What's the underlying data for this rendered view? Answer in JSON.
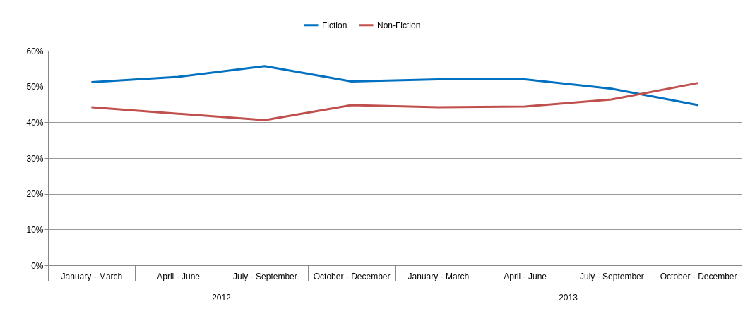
{
  "chart_data": {
    "type": "line",
    "categories": [
      "January - March",
      "April - June",
      "July - September",
      "October - December",
      "January - March",
      "April - June",
      "July - September",
      "October - December"
    ],
    "series": [
      {
        "name": "Fiction",
        "color": "#0070c0",
        "values": [
          51.2,
          52.7,
          55.7,
          51.4,
          52,
          52,
          49.4,
          44.8
        ]
      },
      {
        "name": "Non-Fiction",
        "color": "#c0504d",
        "values": [
          44.2,
          42.4,
          40.6,
          44.8,
          44.2,
          44.4,
          46.4,
          51
        ]
      }
    ],
    "annotations": [
      "2012",
      "2013"
    ],
    "ylim": [
      0,
      60
    ],
    "yticks": [
      {
        "value": 0,
        "label": "0%"
      },
      {
        "value": 10,
        "label": "10%"
      },
      {
        "value": 20,
        "label": "20%"
      },
      {
        "value": 30,
        "label": "30%"
      },
      {
        "value": 40,
        "label": "40%"
      },
      {
        "value": 50,
        "label": "50%"
      },
      {
        "value": 60,
        "label": "60%"
      }
    ],
    "grid": "y",
    "legend": "top",
    "marker": "none",
    "line_style": "solid"
  }
}
